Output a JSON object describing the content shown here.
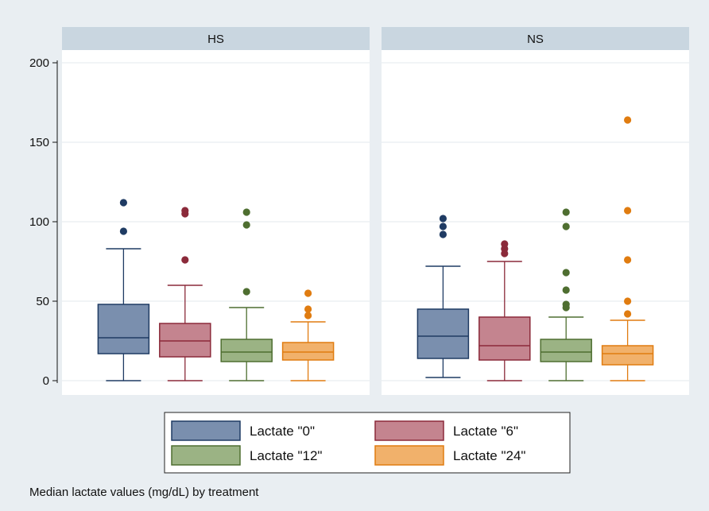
{
  "chart_data": {
    "type": "box",
    "note": "Median lactate values (mg/dL) by treatment",
    "ylim": [
      0,
      200
    ],
    "yticks": [
      0,
      50,
      100,
      150,
      200
    ],
    "grid": true,
    "legend_position": "bottom",
    "series": [
      {
        "name": "Lactate \"0\"",
        "fill": "#7a8fae",
        "stroke": "#1f3b63"
      },
      {
        "name": "Lactate \"6\"",
        "fill": "#c4848f",
        "stroke": "#8b2a3a"
      },
      {
        "name": "Lactate \"12\"",
        "fill": "#9bb384",
        "stroke": "#4e6e30"
      },
      {
        "name": "Lactate \"24\"",
        "fill": "#f1b16b",
        "stroke": "#e07c10"
      }
    ],
    "panels": [
      {
        "title": "HS",
        "boxes": [
          {
            "series": 0,
            "whisker_low": 0,
            "q1": 17,
            "median": 27,
            "q3": 48,
            "whisker_high": 83,
            "outliers": [
              94,
              112
            ]
          },
          {
            "series": 1,
            "whisker_low": 0,
            "q1": 15,
            "median": 25,
            "q3": 36,
            "whisker_high": 60,
            "outliers": [
              76,
              105,
              107
            ]
          },
          {
            "series": 2,
            "whisker_low": 0,
            "q1": 12,
            "median": 18,
            "q3": 26,
            "whisker_high": 46,
            "outliers": [
              56,
              98,
              106
            ]
          },
          {
            "series": 3,
            "whisker_low": 0,
            "q1": 13,
            "median": 18,
            "q3": 24,
            "whisker_high": 37,
            "outliers": [
              41,
              45,
              55
            ]
          }
        ]
      },
      {
        "title": "NS",
        "boxes": [
          {
            "series": 0,
            "whisker_low": 2,
            "q1": 14,
            "median": 28,
            "q3": 45,
            "whisker_high": 72,
            "outliers": [
              92,
              97,
              102
            ]
          },
          {
            "series": 1,
            "whisker_low": 0,
            "q1": 13,
            "median": 22,
            "q3": 40,
            "whisker_high": 75,
            "outliers": [
              80,
              83,
              86
            ]
          },
          {
            "series": 2,
            "whisker_low": 0,
            "q1": 12,
            "median": 18,
            "q3": 26,
            "whisker_high": 40,
            "outliers": [
              46,
              48,
              57,
              68,
              97,
              106
            ]
          },
          {
            "series": 3,
            "whisker_low": 0,
            "q1": 10,
            "median": 17,
            "q3": 22,
            "whisker_high": 38,
            "outliers": [
              42,
              50,
              76,
              107,
              164
            ]
          }
        ]
      }
    ]
  }
}
